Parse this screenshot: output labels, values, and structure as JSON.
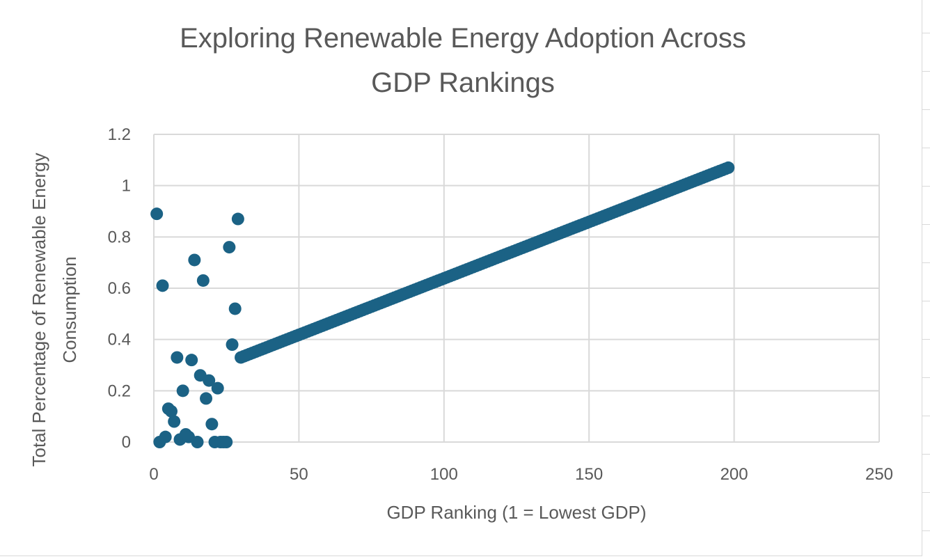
{
  "chart_data": {
    "type": "scatter",
    "title_lines": [
      "Exploring Renewable Energy Adoption Across",
      "GDP Rankings"
    ],
    "xlabel": "GDP Ranking (1 = Lowest GDP)",
    "ylabel_lines": [
      "Total Percentage of Renewable Energy",
      "Consumption"
    ],
    "xlim": [
      0,
      250
    ],
    "ylim": [
      0,
      1.2
    ],
    "x_ticks": [
      "0",
      "50",
      "100",
      "150",
      "200",
      "250"
    ],
    "y_ticks": [
      "0",
      "0.2",
      "0.4",
      "0.6",
      "0.8",
      "1",
      "1.2"
    ],
    "grid": true,
    "legend": false,
    "marker_color": "#1B6285",
    "scatter_points": [
      [
        1,
        0.89
      ],
      [
        2,
        0.0
      ],
      [
        3,
        0.61
      ],
      [
        4,
        0.02
      ],
      [
        5,
        0.13
      ],
      [
        6,
        0.12
      ],
      [
        7,
        0.08
      ],
      [
        8,
        0.33
      ],
      [
        9,
        0.01
      ],
      [
        10,
        0.2
      ],
      [
        11,
        0.03
      ],
      [
        12,
        0.02
      ],
      [
        13,
        0.32
      ],
      [
        14,
        0.71
      ],
      [
        15,
        0.0
      ],
      [
        16,
        0.26
      ],
      [
        17,
        0.63
      ],
      [
        18,
        0.17
      ],
      [
        19,
        0.24
      ],
      [
        20,
        0.07
      ],
      [
        21,
        0.0
      ],
      [
        22,
        0.21
      ],
      [
        23,
        0.0
      ],
      [
        24,
        0.0
      ],
      [
        25,
        0.0
      ],
      [
        26,
        0.76
      ],
      [
        27,
        0.38
      ],
      [
        28,
        0.52
      ],
      [
        29,
        0.87
      ]
    ],
    "trend_series": {
      "x_start": 30,
      "x_end": 198,
      "x_step": 1,
      "y_start": 0.33,
      "y_end": 1.07
    }
  }
}
